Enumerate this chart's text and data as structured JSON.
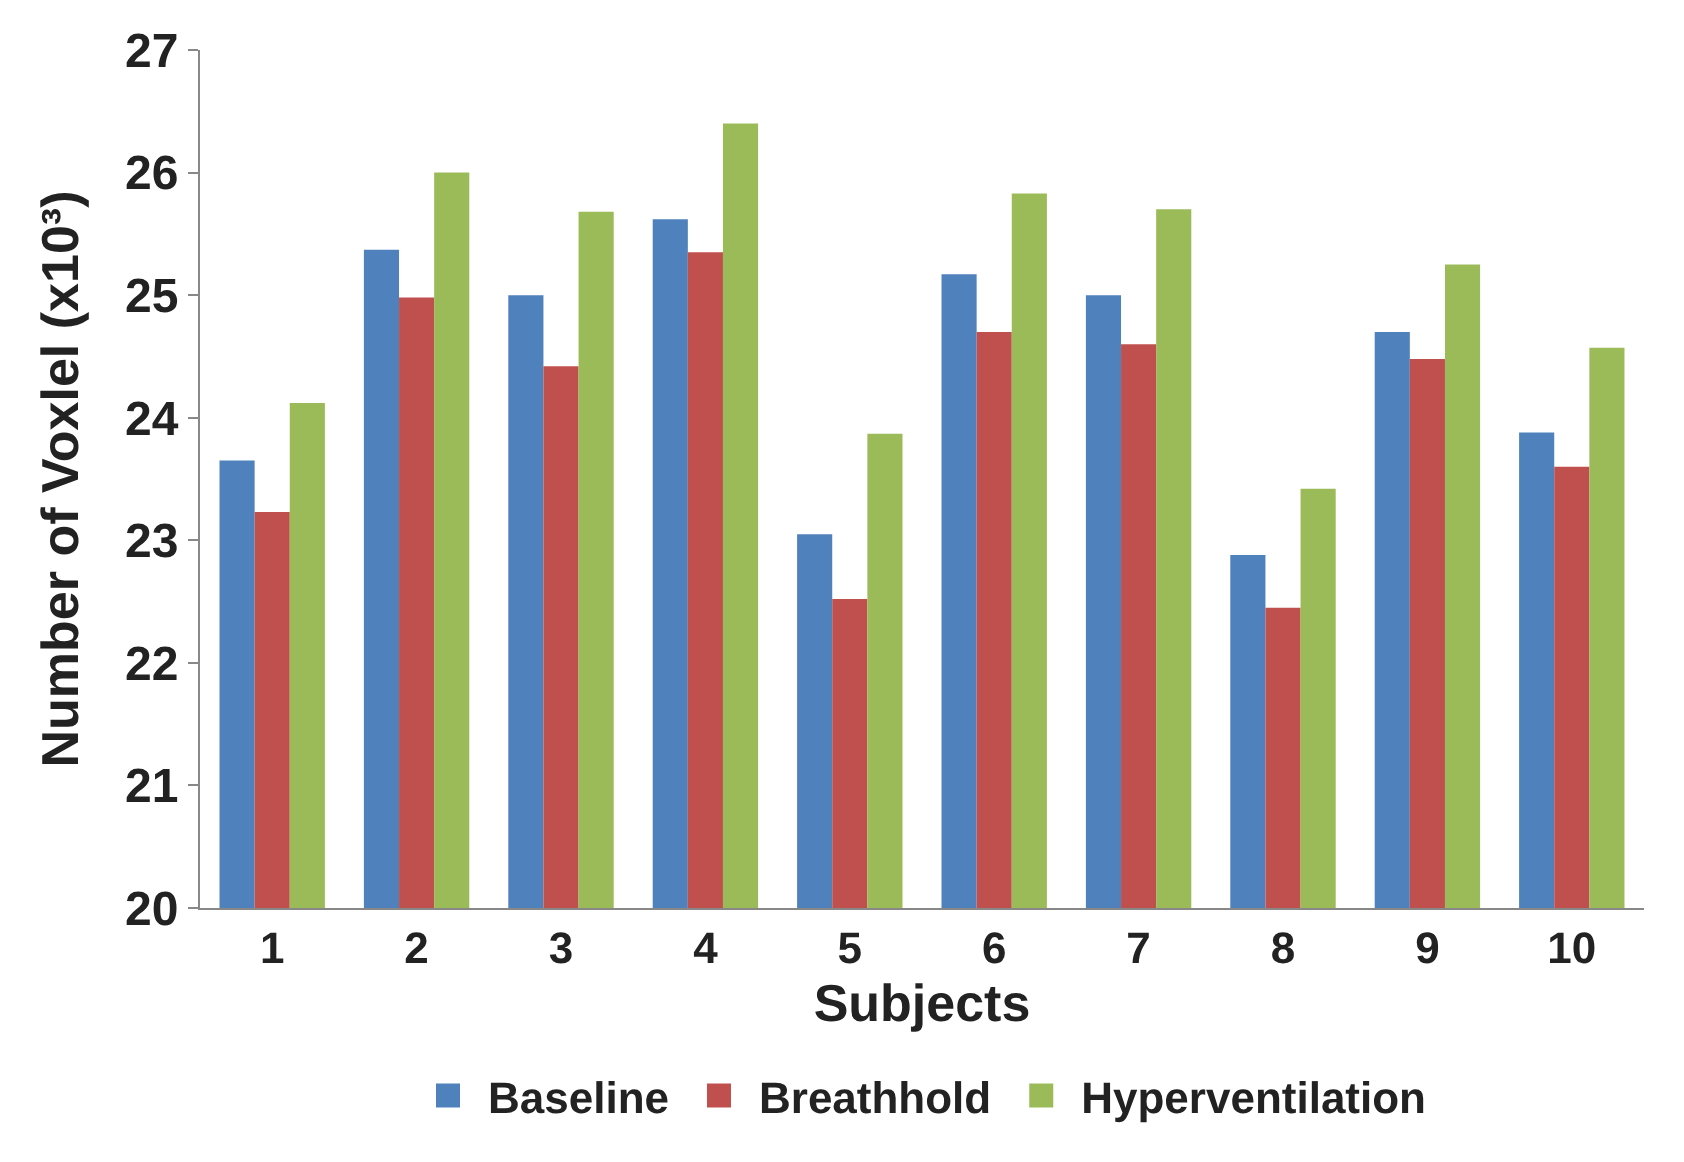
{
  "chart_data": {
    "type": "bar",
    "xlabel": "Subjects",
    "ylabel": "Number of Voxlel (x10³)",
    "categories": [
      "1",
      "2",
      "3",
      "4",
      "5",
      "6",
      "7",
      "8",
      "9",
      "10"
    ],
    "series": [
      {
        "name": "Baseline",
        "color": "#4f81bd",
        "values": [
          23.65,
          25.37,
          25.0,
          25.62,
          23.05,
          25.17,
          25.0,
          22.88,
          24.7,
          23.88
        ]
      },
      {
        "name": "Breathhold",
        "color": "#c0504d",
        "values": [
          23.23,
          24.98,
          24.42,
          25.35,
          22.52,
          24.7,
          24.6,
          22.45,
          24.48,
          23.6
        ]
      },
      {
        "name": "Hyperventilation",
        "color": "#9bbb59",
        "values": [
          24.12,
          26.0,
          25.68,
          26.4,
          23.87,
          25.83,
          25.7,
          23.42,
          25.25,
          24.57
        ]
      }
    ],
    "ylim": [
      20,
      27
    ],
    "yticks": [
      20,
      21,
      22,
      23,
      24,
      25,
      26,
      27
    ],
    "legend": "bottom"
  }
}
